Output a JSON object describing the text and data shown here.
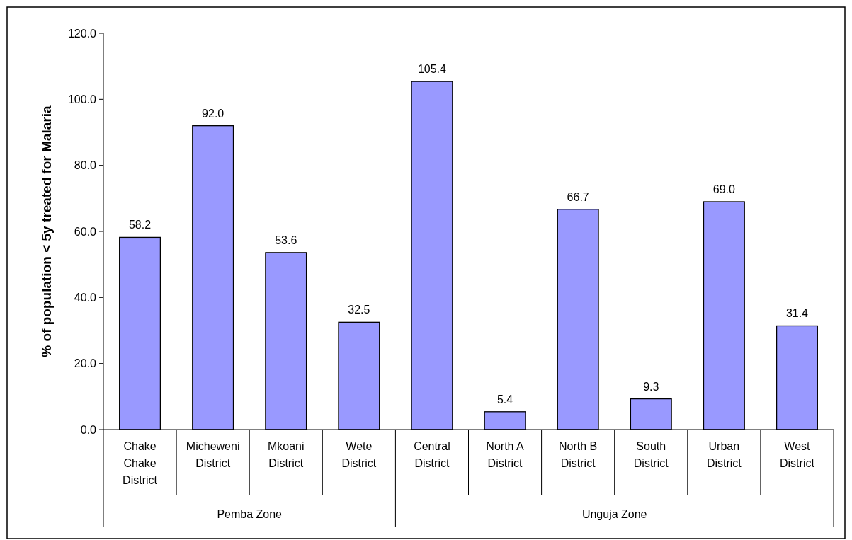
{
  "chart_data": {
    "type": "bar",
    "ylabel": "% of population < 5y treated for Malaria",
    "categories": [
      "Chake Chake District",
      "Micheweni District",
      "Mkoani District",
      "Wete District",
      "Central District",
      "North A District",
      "North B District",
      "South District",
      "Urban District",
      "West District"
    ],
    "values": [
      58.2,
      92.0,
      53.6,
      32.5,
      105.4,
      5.4,
      66.7,
      9.3,
      69.0,
      31.4
    ],
    "value_labels": [
      "58.2",
      "92.0",
      "53.6",
      "32.5",
      "105.4",
      "5.4",
      "66.7",
      "9.3",
      "69.0",
      "31.4"
    ],
    "color": "#9999ff",
    "ylim": [
      0,
      120
    ],
    "yticks": [
      {
        "value": 0,
        "label": "0.0"
      },
      {
        "value": 20,
        "label": "20.0"
      },
      {
        "value": 40,
        "label": "40.0"
      },
      {
        "value": 60,
        "label": "60.0"
      },
      {
        "value": 80,
        "label": "80.0"
      },
      {
        "value": 100,
        "label": "100.0"
      },
      {
        "value": 120,
        "label": "120.0"
      }
    ],
    "annotations": [
      "Pemba Zone",
      "Unguja Zone"
    ]
  }
}
